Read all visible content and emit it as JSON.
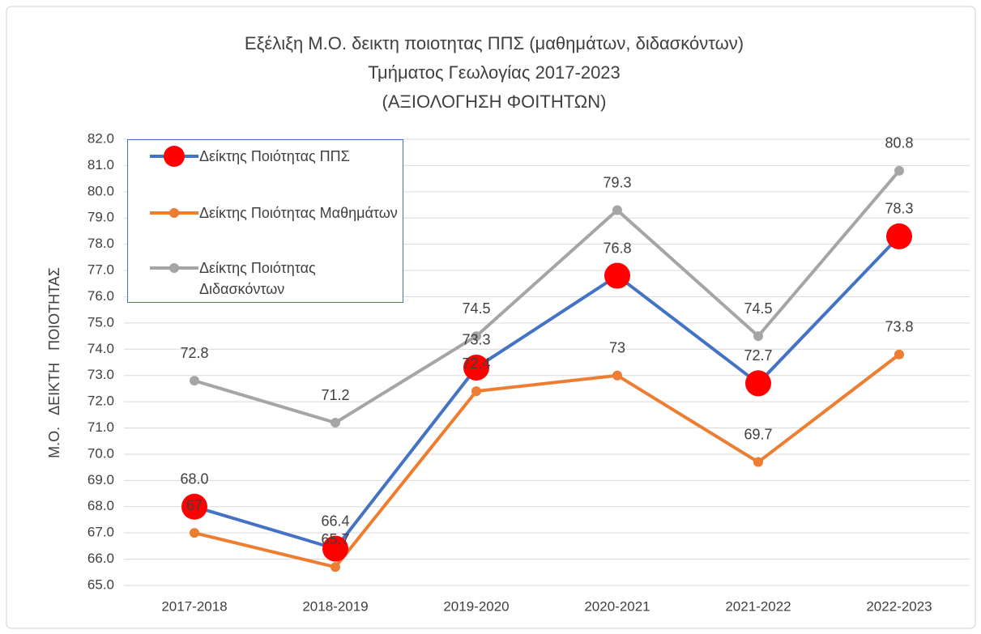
{
  "chart_data": {
    "type": "line",
    "title": [
      "Εξέλιξη Μ.Ο. δεικτη ποιοτητας ΠΠΣ (μαθημάτων, διδασκόντων)",
      "Τμήματος Γεωλογίας 2017-2023",
      "(ΑΞΙΟΛΟΓΗΣΗ ΦΟΙΤΗΤΩΝ)"
    ],
    "y_label": "Μ.Ο.   ΔΕΙΚΤΗ   ΠΟΙΟΤΗΤΑΣ",
    "categories": [
      "2017-2018",
      "2018-2019",
      "2019-2020",
      "2020-2021",
      "2021-2022",
      "2022-2023"
    ],
    "series": [
      {
        "name": "Δείκτης Ποιότητας ΠΠΣ",
        "color": "#4472c4",
        "marker_color": "#ff0000",
        "values": [
          68.0,
          66.4,
          73.3,
          76.8,
          72.7,
          78.3
        ],
        "value_labels": [
          "68.0",
          "66.4",
          "73.3",
          "76.8",
          "72.7",
          "78.3"
        ]
      },
      {
        "name": "Δείκτης Ποιότητας Μαθημάτων",
        "color": "#ed7d31",
        "values": [
          67,
          65.7,
          72.4,
          73,
          69.7,
          73.8
        ]
      },
      {
        "name": "Δείκτης Ποιότητας Διδασκόντων",
        "color": "#a5a5a5",
        "values": [
          72.8,
          71.2,
          74.5,
          79.3,
          74.5,
          80.8
        ]
      }
    ],
    "ylim": [
      65,
      82
    ],
    "yticks": [
      {
        "value": 65,
        "label": "65.0"
      },
      {
        "value": 66,
        "label": "66.0"
      },
      {
        "value": 67,
        "label": "67.0"
      },
      {
        "value": 68,
        "label": "68.0"
      },
      {
        "value": 69,
        "label": "69.0"
      },
      {
        "value": 70,
        "label": "70.0"
      },
      {
        "value": 71,
        "label": "71.0"
      },
      {
        "value": 72,
        "label": "72.0"
      },
      {
        "value": 73,
        "label": "73.0"
      },
      {
        "value": 74,
        "label": "74.0"
      },
      {
        "value": 75,
        "label": "75.0"
      },
      {
        "value": 76,
        "label": "76.0"
      },
      {
        "value": 77,
        "label": "77.0"
      },
      {
        "value": 78,
        "label": "78.0"
      },
      {
        "value": 79,
        "label": "79.0"
      },
      {
        "value": 80,
        "label": "80.0"
      },
      {
        "value": 81,
        "label": "81.0"
      },
      {
        "value": 82,
        "label": "82.0"
      }
    ],
    "grid": true,
    "legend": "top-left"
  }
}
